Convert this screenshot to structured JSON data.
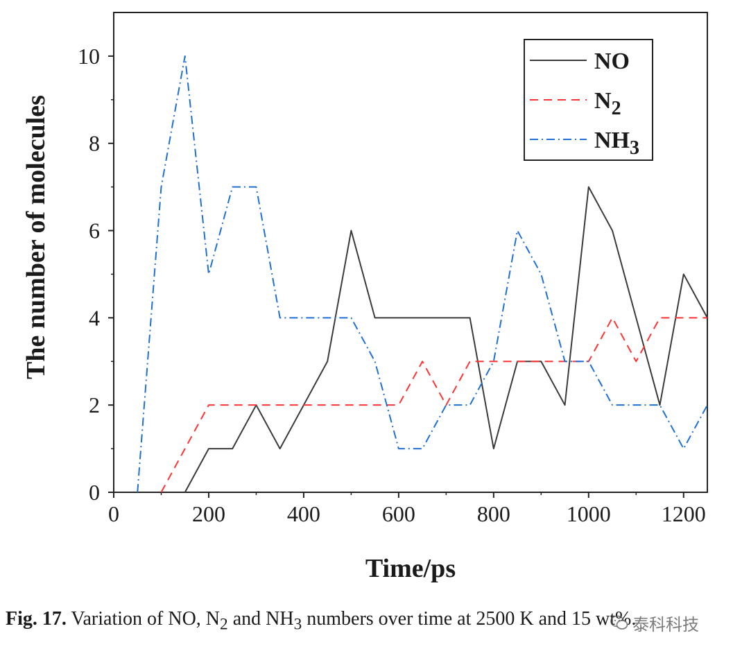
{
  "chart_data": {
    "type": "line",
    "xlabel": "Time/ps",
    "ylabel": "The number of molecules",
    "xlim": [
      0,
      1250
    ],
    "ylim": [
      0,
      11
    ],
    "xticks": [
      0,
      200,
      400,
      600,
      800,
      1000,
      1200
    ],
    "yticks": [
      0,
      2,
      4,
      6,
      8,
      10
    ],
    "legend_position": "top-right",
    "series": [
      {
        "name": "NO",
        "legend_main": "NO",
        "legend_sub": "",
        "color": "#3a3a3a",
        "style": "solid",
        "x": [
          150,
          200,
          250,
          300,
          350,
          400,
          450,
          500,
          550,
          600,
          650,
          700,
          750,
          800,
          850,
          900,
          950,
          1000,
          1050,
          1100,
          1150,
          1200,
          1250
        ],
        "y": [
          0,
          1,
          1,
          2,
          1,
          2,
          3,
          6,
          4,
          4,
          4,
          4,
          4,
          1,
          3,
          3,
          2,
          7,
          6,
          4,
          2,
          5,
          4
        ]
      },
      {
        "name": "N2",
        "legend_main": "N",
        "legend_sub": "2",
        "color": "#ff3333",
        "style": "dashed",
        "x": [
          100,
          150,
          200,
          250,
          300,
          350,
          400,
          450,
          500,
          550,
          600,
          650,
          700,
          750,
          800,
          850,
          900,
          950,
          1000,
          1050,
          1100,
          1150,
          1200,
          1250
        ],
        "y": [
          0,
          1,
          2,
          2,
          2,
          2,
          2,
          2,
          2,
          2,
          2,
          3,
          2,
          3,
          3,
          3,
          3,
          3,
          3,
          4,
          3,
          4,
          4,
          4
        ]
      },
      {
        "name": "NH3",
        "legend_main": "NH",
        "legend_sub": "3",
        "color": "#1f6fd6",
        "style": "dashdot",
        "x": [
          50,
          100,
          150,
          200,
          250,
          300,
          350,
          400,
          450,
          500,
          550,
          600,
          650,
          700,
          750,
          800,
          850,
          900,
          950,
          1000,
          1050,
          1100,
          1150,
          1200,
          1250
        ],
        "y": [
          0,
          7,
          10,
          5,
          7,
          7,
          4,
          4,
          4,
          4,
          3,
          1,
          1,
          2,
          2,
          3,
          6,
          5,
          3,
          3,
          2,
          2,
          2,
          1,
          2
        ]
      }
    ]
  },
  "caption": {
    "label": "Fig. 17.",
    "text_before_n2": " Variation of NO, N",
    "n2_sub": "2",
    "text_before_nh3": " and NH",
    "nh3_sub": "3",
    "text_after": " numbers over time at 2500 K and 15 wt%."
  },
  "watermark": {
    "icon": "wechat-icon",
    "text": "泰科科技"
  }
}
